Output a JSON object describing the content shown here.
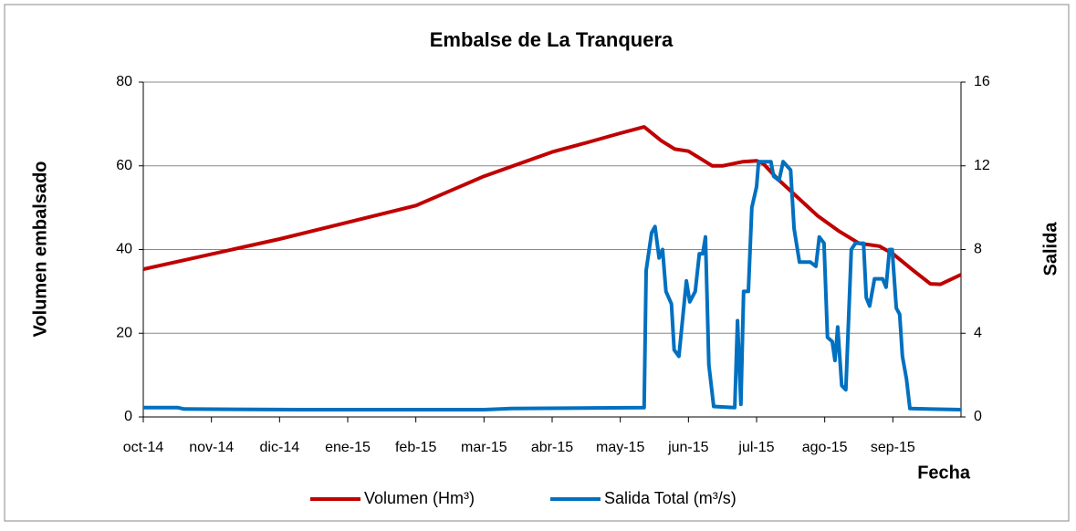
{
  "chart_data": {
    "type": "line",
    "title": "Embalse de La Tranquera",
    "y_label": "Volumen embalsado",
    "y2_label": "Salida",
    "x_label": "Fecha",
    "xlim": [
      0,
      12
    ],
    "xticks": [
      {
        "value": 0,
        "label": "oct-14"
      },
      {
        "value": 1,
        "label": "nov-14"
      },
      {
        "value": 2,
        "label": "dic-14"
      },
      {
        "value": 3,
        "label": "ene-15"
      },
      {
        "value": 4,
        "label": "feb-15"
      },
      {
        "value": 5,
        "label": "mar-15"
      },
      {
        "value": 6,
        "label": "abr-15"
      },
      {
        "value": 7,
        "label": "may-15"
      },
      {
        "value": 8,
        "label": "jun-15"
      },
      {
        "value": 9,
        "label": "jul-15"
      },
      {
        "value": 10,
        "label": "ago-15"
      },
      {
        "value": 11,
        "label": "sep-15"
      }
    ],
    "ylim": [
      0,
      80
    ],
    "yticks": [
      0,
      20,
      40,
      60,
      80
    ],
    "y2lim": [
      0,
      16
    ],
    "y2ticks": [
      0,
      4,
      8,
      12,
      16
    ],
    "grid": true,
    "legend": "bottom",
    "series": [
      {
        "name": "Volumen (Hm³)",
        "color": "#c00000",
        "x": [
          0,
          2,
          3,
          4,
          5,
          5.6,
          6,
          6.5,
          7,
          7.35,
          7.6,
          7.8,
          8.0,
          8.1,
          8.35,
          8.5,
          8.8,
          9.0,
          9.1,
          9.3,
          9.6,
          9.9,
          10.2,
          10.5,
          10.8,
          11.0,
          11.3,
          11.55,
          11.7,
          12.0
        ],
        "values": [
          35.3,
          42.5,
          46.5,
          50.5,
          57.5,
          61,
          63.3,
          65.5,
          67.8,
          69.3,
          66,
          64,
          63.5,
          62.5,
          60,
          60,
          61,
          61.2,
          60.5,
          57,
          52.5,
          48,
          44.5,
          41.5,
          40.8,
          39,
          35,
          31.8,
          31.7,
          34
        ]
      },
      {
        "name": "Salida Total (m³/s)",
        "color": "#0070c0",
        "axis": "y2",
        "x": [
          0,
          0.5,
          0.6,
          2.3,
          4,
          5,
          5.4,
          7.35,
          7.38,
          7.46,
          7.51,
          7.57,
          7.62,
          7.67,
          7.75,
          7.79,
          7.86,
          7.97,
          8.02,
          8.1,
          8.16,
          8.21,
          8.25,
          8.3,
          8.37,
          8.68,
          8.72,
          8.77,
          8.81,
          8.88,
          8.93,
          9.0,
          9.03,
          9.21,
          9.25,
          9.33,
          9.39,
          9.5,
          9.55,
          9.63,
          9.79,
          9.87,
          9.92,
          9.99,
          10.04,
          10.11,
          10.15,
          10.19,
          10.25,
          10.31,
          10.39,
          10.45,
          10.57,
          10.61,
          10.66,
          10.73,
          10.85,
          10.9,
          10.95,
          10.99,
          11.05,
          11.1,
          11.14,
          11.2,
          11.25,
          12.0
        ],
        "values": [
          0.45,
          0.45,
          0.38,
          0.35,
          0.35,
          0.35,
          0.4,
          0.45,
          7,
          8.8,
          9.1,
          7.6,
          8,
          6,
          5.4,
          3.2,
          2.9,
          6.5,
          5.5,
          6,
          7.8,
          7.8,
          8.6,
          2.5,
          0.5,
          0.45,
          4.6,
          0.6,
          6,
          6,
          10,
          11,
          12.2,
          12.2,
          11.5,
          11.3,
          12.2,
          11.8,
          9,
          7.4,
          7.4,
          7.2,
          8.6,
          8.3,
          3.8,
          3.6,
          2.7,
          4.3,
          1.5,
          1.3,
          8,
          8.3,
          8.3,
          5.7,
          5.3,
          6.6,
          6.6,
          6.2,
          8,
          8,
          5.2,
          4.9,
          2.9,
          1.8,
          0.4,
          0.35
        ]
      }
    ]
  }
}
